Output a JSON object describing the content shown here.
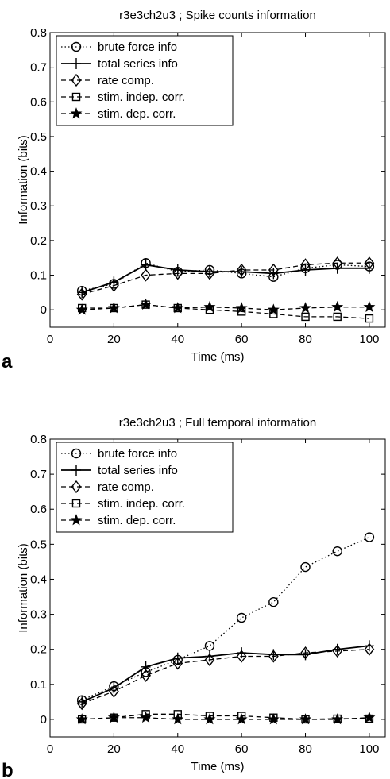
{
  "figure": {
    "panel_labels": [
      "a",
      "b"
    ]
  },
  "chart_data": [
    {
      "type": "line",
      "title": "r3e3ch2u3 ; Spike counts information",
      "xlabel": "Time (ms)",
      "ylabel": "Information (bits)",
      "xlim": [
        0,
        105
      ],
      "ylim": [
        -0.05,
        0.8
      ],
      "xticks": [
        0,
        20,
        40,
        60,
        80,
        100
      ],
      "yticks": [
        0,
        0.1,
        0.2,
        0.3,
        0.4,
        0.5,
        0.6,
        0.7,
        0.8
      ],
      "grid": false,
      "legend_position": "top-left",
      "x": [
        10,
        20,
        30,
        40,
        50,
        60,
        70,
        80,
        90,
        100
      ],
      "series": [
        {
          "name": "brute force info",
          "line": "dotted",
          "marker": "circle",
          "values": [
            0.055,
            0.075,
            0.135,
            0.11,
            0.115,
            0.105,
            0.095,
            0.12,
            0.13,
            0.125
          ]
        },
        {
          "name": "total series info",
          "line": "solid",
          "marker": "plus",
          "values": [
            0.05,
            0.08,
            0.13,
            0.115,
            0.11,
            0.11,
            0.105,
            0.115,
            0.12,
            0.12
          ]
        },
        {
          "name": "rate comp.",
          "line": "dashed",
          "marker": "diamond",
          "values": [
            0.045,
            0.07,
            0.1,
            0.105,
            0.105,
            0.115,
            0.115,
            0.13,
            0.135,
            0.135
          ]
        },
        {
          "name": "stim. indep. corr.",
          "line": "dashed",
          "marker": "square",
          "values": [
            0.005,
            0.005,
            0.015,
            0.005,
            0.0,
            -0.005,
            -0.012,
            -0.02,
            -0.02,
            -0.025
          ]
        },
        {
          "name": "stim. dep. corr.",
          "line": "dashed",
          "marker": "star",
          "values": [
            0.0,
            0.005,
            0.015,
            0.005,
            0.008,
            0.005,
            0.0,
            0.005,
            0.008,
            0.008
          ]
        }
      ]
    },
    {
      "type": "line",
      "title": "r3e3ch2u3 ; Full temporal information",
      "xlabel": "Time (ms)",
      "ylabel": "Information (bits)",
      "xlim": [
        0,
        105
      ],
      "ylim": [
        -0.05,
        0.8
      ],
      "xticks": [
        0,
        20,
        40,
        60,
        80,
        100
      ],
      "yticks": [
        0,
        0.1,
        0.2,
        0.3,
        0.4,
        0.5,
        0.6,
        0.7,
        0.8
      ],
      "grid": false,
      "legend_position": "top-left",
      "x": [
        10,
        20,
        30,
        40,
        50,
        60,
        70,
        80,
        90,
        100
      ],
      "series": [
        {
          "name": "brute force info",
          "line": "dotted",
          "marker": "circle",
          "values": [
            0.055,
            0.095,
            0.135,
            0.17,
            0.21,
            0.29,
            0.335,
            0.435,
            0.48,
            0.52
          ]
        },
        {
          "name": "total series info",
          "line": "solid",
          "marker": "plus",
          "values": [
            0.05,
            0.09,
            0.15,
            0.175,
            0.18,
            0.19,
            0.185,
            0.185,
            0.2,
            0.21
          ]
        },
        {
          "name": "rate comp.",
          "line": "dashed",
          "marker": "diamond",
          "values": [
            0.045,
            0.08,
            0.125,
            0.16,
            0.17,
            0.18,
            0.18,
            0.19,
            0.195,
            0.2
          ]
        },
        {
          "name": "stim. indep. corr.",
          "line": "dashed",
          "marker": "square",
          "values": [
            0.0,
            0.005,
            0.015,
            0.015,
            0.01,
            0.01,
            0.005,
            0.0,
            0.002,
            0.002
          ]
        },
        {
          "name": "stim. dep. corr.",
          "line": "dashed",
          "marker": "star",
          "values": [
            0.0,
            0.005,
            0.005,
            0.0,
            0.0,
            0.0,
            0.0,
            0.0,
            0.0,
            0.005
          ]
        }
      ]
    }
  ]
}
